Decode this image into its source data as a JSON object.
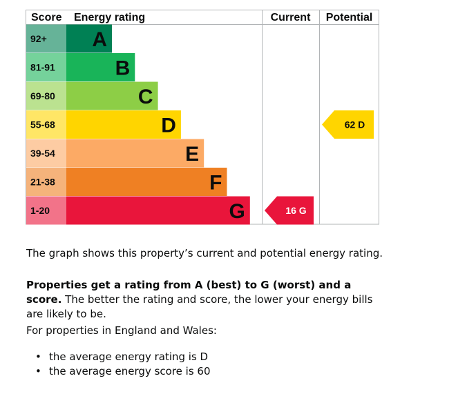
{
  "chart_data": {
    "type": "bar",
    "headers": {
      "score": "Score",
      "rating": "Energy rating",
      "current": "Current",
      "potential": "Potential"
    },
    "bands": [
      {
        "band": "A",
        "range": "92+",
        "color": "#008054",
        "range_bg": "#66b398"
      },
      {
        "band": "B",
        "range": "81-91",
        "color": "#19b459",
        "range_bg": "#75d29b"
      },
      {
        "band": "C",
        "range": "69-80",
        "color": "#8dce46",
        "range_bg": "#bbe290"
      },
      {
        "band": "D",
        "range": "55-68",
        "color": "#ffd500",
        "range_bg": "#ffe666"
      },
      {
        "band": "E",
        "range": "39-54",
        "color": "#fcaa65",
        "range_bg": "#fdcca3"
      },
      {
        "band": "F",
        "range": "21-38",
        "color": "#ef8023",
        "range_bg": "#f5b37b"
      },
      {
        "band": "G",
        "range": "1-20",
        "color": "#e9153b",
        "range_bg": "#f27389"
      }
    ],
    "current": {
      "score": 16,
      "band": "G",
      "label": "16  G",
      "color": "#e9153b"
    },
    "potential": {
      "score": 62,
      "band": "D",
      "label": "62  D",
      "color": "#ffd500"
    }
  },
  "text": {
    "intro": "The graph shows this property’s current and potential energy rating.",
    "rating_bold": "Properties get a rating from A (best) to G (worst) and a score.",
    "rating_rest": " The better the rating and score, the lower your energy bills are likely to be.",
    "region_intro": "For properties in England and Wales:",
    "bullet_1": "the average energy rating is D",
    "bullet_2": "the average energy score is 60"
  }
}
